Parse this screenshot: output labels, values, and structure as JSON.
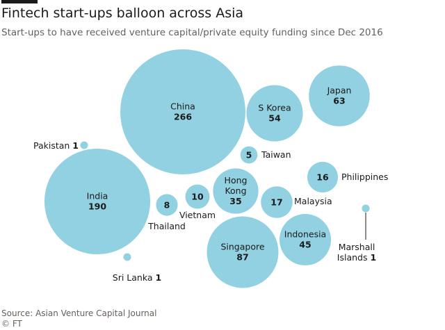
{
  "header": {
    "title": "Fintech start-ups balloon across Asia",
    "subtitle": "Start-ups to have received venture capital/private equity funding since Dec 2016"
  },
  "footer": {
    "source": "Source: Asian Venture Capital Journal",
    "credit": "© FT"
  },
  "colors": {
    "bubble": "#91d1e2",
    "text": "#1a1a1a",
    "muted": "#66605c"
  },
  "chart_data": {
    "type": "bubble",
    "title": "Fintech start-ups balloon across Asia",
    "subtitle": "Start-ups to have received venture capital/private equity funding since Dec 2016",
    "series": [
      {
        "name": "Start-ups",
        "items": [
          {
            "label": "China",
            "value": 266
          },
          {
            "label": "India",
            "value": 190
          },
          {
            "label": "Singapore",
            "value": 87
          },
          {
            "label": "Japan",
            "value": 63
          },
          {
            "label": "S Korea",
            "value": 54
          },
          {
            "label": "Indonesia",
            "value": 45
          },
          {
            "label": "Hong Kong",
            "value": 35
          },
          {
            "label": "Malaysia",
            "value": 17
          },
          {
            "label": "Philippines",
            "value": 16
          },
          {
            "label": "Vietnam",
            "value": 10
          },
          {
            "label": "Thailand",
            "value": 8
          },
          {
            "label": "Taiwan",
            "value": 5
          },
          {
            "label": "Pakistan",
            "value": 1
          },
          {
            "label": "Sri Lanka",
            "value": 1
          },
          {
            "label": "Marshall Islands",
            "value": 1
          }
        ]
      }
    ]
  }
}
